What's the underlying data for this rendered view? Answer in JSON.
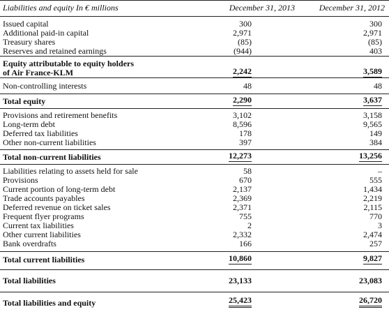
{
  "header": {
    "label": "Liabilities and equity In € millions",
    "col1": "December 31, 2013",
    "col2": "December 31, 2012"
  },
  "rows": [
    {
      "label": "Issued capital",
      "v1": "300",
      "v2": "300"
    },
    {
      "label": "Additional paid-in capital",
      "v1": "2,971",
      "v2": "2,971"
    },
    {
      "label": "Treasury shares",
      "v1": "(85)",
      "v2": "(85)"
    },
    {
      "label": "Reserves and retained earnings",
      "v1": "(944)",
      "v2": "403"
    },
    {
      "label": "Equity attributable to equity holders",
      "label2": "of Air France-KLM",
      "v1": "2,242",
      "v2": "3,589"
    },
    {
      "label": "Non-controlling interests",
      "v1": "48",
      "v2": "48"
    },
    {
      "label": "Total equity",
      "v1": "2,290",
      "v2": "3,637"
    },
    {
      "label": "Provisions and retirement benefits",
      "v1": "3,102",
      "v2": "3,158"
    },
    {
      "label": "Long-term debt",
      "v1": "8,596",
      "v2": "9,565"
    },
    {
      "label": "Deferred tax liabilities",
      "v1": "178",
      "v2": "149"
    },
    {
      "label": "Other non-current liabilities",
      "v1": "397",
      "v2": "384"
    },
    {
      "label": "Total non-current liabilities",
      "v1": "12,273",
      "v2": "13,256"
    },
    {
      "label": "Liabilities relating to assets held for sale",
      "v1": "58",
      "v2": "–"
    },
    {
      "label": "Provisions",
      "v1": "670",
      "v2": "555"
    },
    {
      "label": "Current portion of long-term debt",
      "v1": "2,137",
      "v2": "1,434"
    },
    {
      "label": "Trade accounts payables",
      "v1": "2,369",
      "v2": "2,219"
    },
    {
      "label": "Deferred revenue on ticket sales",
      "v1": "2,371",
      "v2": "2,115"
    },
    {
      "label": "Frequent flyer programs",
      "v1": "755",
      "v2": "770"
    },
    {
      "label": "Current tax liabilities",
      "v1": "2",
      "v2": "3"
    },
    {
      "label": "Other current liabilities",
      "v1": "2,332",
      "v2": "2,474"
    },
    {
      "label": "Bank overdrafts",
      "v1": "166",
      "v2": "257"
    },
    {
      "label": "Total current liabilities",
      "v1": "10,860",
      "v2": "9,827"
    },
    {
      "label": "Total liabilities",
      "v1": "23,133",
      "v2": "23,083"
    },
    {
      "label": "Total liabilities and equity",
      "v1": "25,423",
      "v2": "26,720"
    }
  ]
}
